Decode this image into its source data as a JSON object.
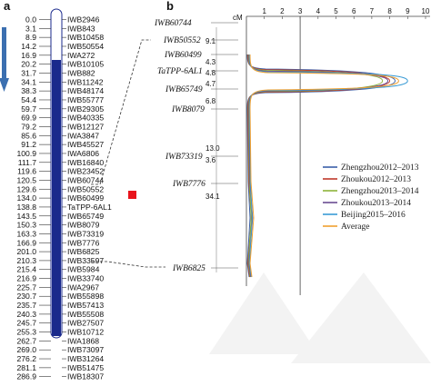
{
  "panel_a_label": "a",
  "panel_b_label": "b",
  "colors": {
    "chromosome": "#1a2a8c",
    "arrow": "#3b6fb0",
    "highlight": "#e8141c",
    "series": [
      "#3b5fa8",
      "#c0392b",
      "#8db33a",
      "#6a4c93",
      "#3a9bd5",
      "#f0a030"
    ]
  },
  "linkage_map": [
    {
      "pos": "0.0",
      "marker": "IWB2946"
    },
    {
      "pos": "3.1",
      "marker": "IWB843"
    },
    {
      "pos": "8.9",
      "marker": "IWB10458"
    },
    {
      "pos": "14.2",
      "marker": "IWB50554"
    },
    {
      "pos": "16.9",
      "marker": "IWA272"
    },
    {
      "pos": "20.2",
      "marker": "IWB10105"
    },
    {
      "pos": "31.7",
      "marker": "IWB882"
    },
    {
      "pos": "34.1",
      "marker": "IWB11242"
    },
    {
      "pos": "38.3",
      "marker": "IWB48174"
    },
    {
      "pos": "54.4",
      "marker": "IWB55777"
    },
    {
      "pos": "59.7",
      "marker": "IWB29305"
    },
    {
      "pos": "69.9",
      "marker": "IWB40335"
    },
    {
      "pos": "79.2",
      "marker": "IWB12127"
    },
    {
      "pos": "85.6",
      "marker": "IWA3847"
    },
    {
      "pos": "91.2",
      "marker": "IWB45527"
    },
    {
      "pos": "100.9",
      "marker": "IWA6806"
    },
    {
      "pos": "111.7",
      "marker": "IWB16840"
    },
    {
      "pos": "119.6",
      "marker": "IWB23452"
    },
    {
      "pos": "120.5",
      "marker": "IWB60744"
    },
    {
      "pos": "129.6",
      "marker": "IWB50552"
    },
    {
      "pos": "134.0",
      "marker": "IWB60499"
    },
    {
      "pos": "138.8",
      "marker": "TaTPP-6AL1"
    },
    {
      "pos": "143.5",
      "marker": "IWB65749"
    },
    {
      "pos": "150.3",
      "marker": "IWB8079"
    },
    {
      "pos": "163.3",
      "marker": "IWB73319"
    },
    {
      "pos": "166.9",
      "marker": "IWB7776"
    },
    {
      "pos": "201.0",
      "marker": "IWB6825"
    },
    {
      "pos": "210.3",
      "marker": "IWB33597"
    },
    {
      "pos": "215.4",
      "marker": "IWB5984"
    },
    {
      "pos": "216.9",
      "marker": "IWB33740"
    },
    {
      "pos": "225.7",
      "marker": "IWA2967"
    },
    {
      "pos": "230.7",
      "marker": "IWB55898"
    },
    {
      "pos": "235.7",
      "marker": "IWB57413"
    },
    {
      "pos": "240.3",
      "marker": "IWB55508"
    },
    {
      "pos": "245.7",
      "marker": "IWB27507"
    },
    {
      "pos": "255.3",
      "marker": "IWB10712"
    },
    {
      "pos": "262.7",
      "marker": "IWA1868"
    },
    {
      "pos": "269.0",
      "marker": "IWB73097"
    },
    {
      "pos": "276.2",
      "marker": "IWB31264"
    },
    {
      "pos": "281.1",
      "marker": "IWB51475"
    },
    {
      "pos": "286.9",
      "marker": "IWB18307"
    }
  ],
  "panel_b": {
    "cm_label": "cM",
    "intervals": [
      {
        "value": "9.1"
      },
      {
        "value": "4.3"
      },
      {
        "value": "4.8"
      },
      {
        "value": "4.7"
      },
      {
        "value": "6.8"
      },
      {
        "value": "13.0"
      },
      {
        "value": "3.6"
      },
      {
        "value": "34.1"
      }
    ],
    "markers": [
      "IWB60744",
      "IWB50552",
      "IWB60499",
      "TaTPP-6AL1",
      "IWB65749",
      "IWB8079",
      "IWB73319",
      "IWB7776",
      "IWB6825"
    ]
  },
  "chart_data": {
    "type": "line",
    "xlabel": "",
    "ylabel": "cM",
    "xlim": [
      0,
      10
    ],
    "xticks": [
      "1",
      "2",
      "3",
      "4",
      "5",
      "6",
      "7",
      "8",
      "9",
      "10"
    ],
    "threshold": 3,
    "series": [
      {
        "name": "Zhengzhou2012–2013",
        "peak": 8.3
      },
      {
        "name": "Zhoukou2012–2013",
        "peak": 8.0
      },
      {
        "name": "Zhengzhou2013–2014",
        "peak": 7.6
      },
      {
        "name": "Zhoukou2013–2014",
        "peak": 7.9
      },
      {
        "name": "Beijing2015–2016",
        "peak": 9.0
      },
      {
        "name": "Average",
        "peak": 8.5
      }
    ]
  }
}
